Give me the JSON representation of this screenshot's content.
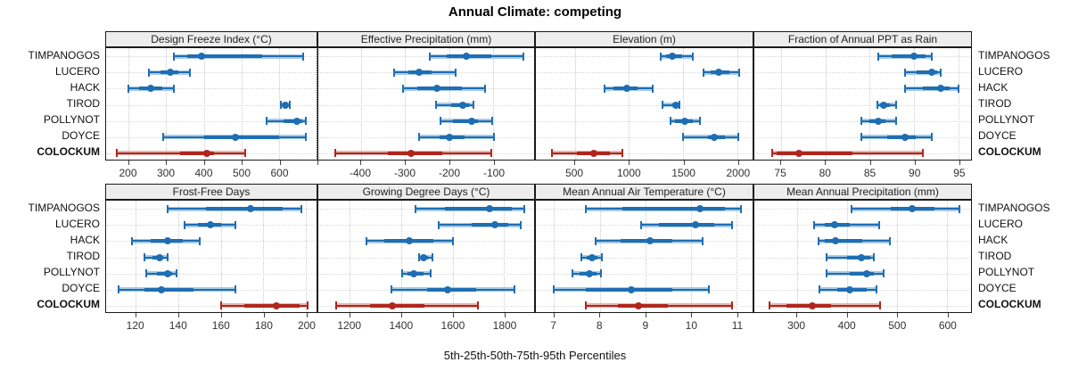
{
  "title": "Annual Climate: competing",
  "caption": "5th-25th-50th-75th-95th Percentiles",
  "sites": [
    "TIMPANOGOS",
    "LUCERO",
    "HACK",
    "TIROD",
    "POLLYNOT",
    "DOYCE",
    "COLOCKUM"
  ],
  "highlight_site": "COLOCKUM",
  "colors": {
    "blue": "#1f6eb3",
    "blue_light": "#a9cbe4",
    "red": "#b0261c",
    "red_light": "#e6b7b1",
    "grid": "#c9c9c9",
    "strip_bg": "#ededed",
    "border": "#1a1a1a",
    "text": "#333333"
  },
  "chart_data": [
    {
      "type": "dotplot-percentiles",
      "title": "Design Freeze Index (°C)",
      "row": 0,
      "col": 0,
      "xlim": [
        140,
        700
      ],
      "ticks": [
        200,
        300,
        400,
        500,
        600
      ],
      "extra_ticks": [
        700
      ],
      "percentile_levels": [
        5,
        25,
        50,
        75,
        95
      ],
      "series": [
        {
          "name": "TIMPANOGOS",
          "percentiles": [
            320,
            355,
            395,
            555,
            665
          ]
        },
        {
          "name": "LUCERO",
          "percentiles": [
            255,
            285,
            310,
            332,
            362
          ]
        },
        {
          "name": "HACK",
          "percentiles": [
            200,
            228,
            258,
            290,
            320
          ]
        },
        {
          "name": "TIROD",
          "percentiles": [
            604,
            611,
            617,
            623,
            629
          ]
        },
        {
          "name": "POLLYNOT",
          "percentiles": [
            568,
            612,
            648,
            661,
            672
          ]
        },
        {
          "name": "DOYCE",
          "percentiles": [
            293,
            400,
            485,
            600,
            672
          ]
        },
        {
          "name": "COLOCKUM",
          "percentiles": [
            168,
            337,
            408,
            426,
            510
          ]
        }
      ]
    },
    {
      "type": "dotplot-percentiles",
      "title": "Effective Precipitation (mm)",
      "row": 0,
      "col": 1,
      "xlim": [
        -496,
        -8
      ],
      "ticks": [
        -400,
        -300,
        -200,
        -100
      ],
      "extra_ticks": [],
      "percentile_levels": [
        5,
        25,
        50,
        75,
        95
      ],
      "series": [
        {
          "name": "TIMPANOGOS",
          "percentiles": [
            -243,
            -205,
            -162,
            -105,
            -33
          ]
        },
        {
          "name": "LUCERO",
          "percentiles": [
            -324,
            -292,
            -269,
            -239,
            -185
          ]
        },
        {
          "name": "HACK",
          "percentiles": [
            -305,
            -272,
            -227,
            -172,
            -119
          ]
        },
        {
          "name": "TIROD",
          "percentiles": [
            -229,
            -195,
            -170,
            -155,
            -145
          ]
        },
        {
          "name": "POLLYNOT",
          "percentiles": [
            -219,
            -192,
            -149,
            -135,
            -103
          ]
        },
        {
          "name": "DOYCE",
          "percentiles": [
            -269,
            -222,
            -199,
            -165,
            -99
          ]
        },
        {
          "name": "COLOCKUM",
          "percentiles": [
            -457,
            -339,
            -287,
            -215,
            -105
          ]
        }
      ]
    },
    {
      "type": "dotplot-percentiles",
      "title": "Elevation (m)",
      "row": 0,
      "col": 2,
      "xlim": [
        140,
        2140
      ],
      "ticks": [
        500,
        1000,
        1500,
        2000
      ],
      "extra_ticks": [],
      "percentile_levels": [
        5,
        25,
        50,
        75,
        95
      ],
      "series": [
        {
          "name": "TIMPANOGOS",
          "percentiles": [
            1290,
            1345,
            1400,
            1490,
            1585
          ]
        },
        {
          "name": "LUCERO",
          "percentiles": [
            1685,
            1750,
            1825,
            1930,
            2020
          ]
        },
        {
          "name": "HACK",
          "percentiles": [
            770,
            860,
            980,
            1080,
            1215
          ]
        },
        {
          "name": "TIROD",
          "percentiles": [
            1310,
            1400,
            1435,
            1455,
            1465
          ]
        },
        {
          "name": "POLLYNOT",
          "percentiles": [
            1380,
            1420,
            1515,
            1590,
            1655
          ]
        },
        {
          "name": "DOYCE",
          "percentiles": [
            1500,
            1725,
            1785,
            1885,
            2005
          ]
        },
        {
          "name": "COLOCKUM",
          "percentiles": [
            290,
            520,
            675,
            820,
            940
          ]
        }
      ]
    },
    {
      "type": "dotplot-percentiles",
      "title": "Fraction of Annual PPT as Rain",
      "row": 0,
      "col": 3,
      "xlim": [
        72,
        96.4
      ],
      "ticks": [
        75,
        80,
        85,
        90,
        95
      ],
      "extra_ticks": [],
      "percentile_levels": [
        5,
        25,
        50,
        75,
        95
      ],
      "series": [
        {
          "name": "TIMPANOGOS",
          "percentiles": [
            86,
            87.5,
            90,
            91.3,
            92
          ]
        },
        {
          "name": "LUCERO",
          "percentiles": [
            89,
            90.3,
            92,
            92.6,
            93
          ]
        },
        {
          "name": "HACK",
          "percentiles": [
            89,
            91,
            93,
            94,
            95
          ]
        },
        {
          "name": "TIROD",
          "percentiles": [
            85.9,
            86.2,
            86.6,
            87.3,
            88
          ]
        },
        {
          "name": "POLLYNOT",
          "percentiles": [
            84,
            85,
            86,
            86.8,
            88
          ]
        },
        {
          "name": "DOYCE",
          "percentiles": [
            84,
            87,
            89,
            90.2,
            92
          ]
        },
        {
          "name": "COLOCKUM",
          "percentiles": [
            74,
            74.5,
            77,
            83,
            91
          ]
        }
      ]
    },
    {
      "type": "dotplot-percentiles",
      "title": "Frost-Free Days",
      "row": 1,
      "col": 0,
      "xlim": [
        106,
        205
      ],
      "ticks": [
        120,
        140,
        160,
        180,
        200
      ],
      "extra_ticks": [],
      "percentile_levels": [
        5,
        25,
        50,
        75,
        95
      ],
      "series": [
        {
          "name": "TIMPANOGOS",
          "percentiles": [
            135,
            153,
            174,
            189,
            198
          ]
        },
        {
          "name": "LUCERO",
          "percentiles": [
            143,
            149,
            155,
            160,
            167
          ]
        },
        {
          "name": "HACK",
          "percentiles": [
            118,
            127,
            135,
            142,
            150
          ]
        },
        {
          "name": "TIROD",
          "percentiles": [
            124,
            128,
            131,
            133,
            135
          ]
        },
        {
          "name": "POLLYNOT",
          "percentiles": [
            125,
            130,
            135,
            137,
            139
          ]
        },
        {
          "name": "DOYCE",
          "percentiles": [
            112,
            124,
            132,
            147,
            167
          ]
        },
        {
          "name": "COLOCKUM",
          "percentiles": [
            160,
            171,
            186,
            197,
            201
          ]
        }
      ]
    },
    {
      "type": "dotplot-percentiles",
      "title": "Growing Degree Days (°C)",
      "row": 1,
      "col": 1,
      "xlim": [
        1077,
        1917
      ],
      "ticks": [
        1200,
        1400,
        1600,
        1800
      ],
      "extra_ticks": [],
      "percentile_levels": [
        5,
        25,
        50,
        75,
        95
      ],
      "series": [
        {
          "name": "TIMPANOGOS",
          "percentiles": [
            1455,
            1570,
            1745,
            1830,
            1880
          ]
        },
        {
          "name": "LUCERO",
          "percentiles": [
            1545,
            1675,
            1765,
            1815,
            1865
          ]
        },
        {
          "name": "HACK",
          "percentiles": [
            1265,
            1335,
            1430,
            1525,
            1600
          ]
        },
        {
          "name": "TIROD",
          "percentiles": [
            1470,
            1478,
            1487,
            1505,
            1520
          ]
        },
        {
          "name": "POLLYNOT",
          "percentiles": [
            1405,
            1425,
            1450,
            1485,
            1515
          ]
        },
        {
          "name": "DOYCE",
          "percentiles": [
            1360,
            1500,
            1580,
            1690,
            1840
          ]
        },
        {
          "name": "COLOCKUM",
          "percentiles": [
            1145,
            1280,
            1365,
            1490,
            1700
          ]
        }
      ]
    },
    {
      "type": "dotplot-percentiles",
      "title": "Mean Annual Air Temperature (°C)",
      "row": 1,
      "col": 2,
      "xlim": [
        6.6,
        11.35
      ],
      "ticks": [
        7,
        8,
        9,
        10,
        11
      ],
      "extra_ticks": [],
      "percentile_levels": [
        5,
        25,
        50,
        75,
        95
      ],
      "series": [
        {
          "name": "TIMPANOGOS",
          "percentiles": [
            7.7,
            8.5,
            10.2,
            10.75,
            11.1
          ]
        },
        {
          "name": "LUCERO",
          "percentiles": [
            8.9,
            9.3,
            10.1,
            10.5,
            10.9
          ]
        },
        {
          "name": "HACK",
          "percentiles": [
            7.9,
            8.45,
            9.1,
            9.6,
            10.25
          ]
        },
        {
          "name": "TIROD",
          "percentiles": [
            7.6,
            7.72,
            7.83,
            7.95,
            8.05
          ]
        },
        {
          "name": "POLLYNOT",
          "percentiles": [
            7.4,
            7.55,
            7.78,
            7.92,
            8.02
          ]
        },
        {
          "name": "DOYCE",
          "percentiles": [
            7.0,
            7.7,
            8.7,
            9.6,
            10.4
          ]
        },
        {
          "name": "COLOCKUM",
          "percentiles": [
            7.7,
            8.4,
            8.85,
            9.5,
            10.9
          ]
        }
      ]
    },
    {
      "type": "dotplot-percentiles",
      "title": "Mean Annual Precipitation (mm)",
      "row": 1,
      "col": 3,
      "xlim": [
        215,
        648
      ],
      "ticks": [
        300,
        400,
        500,
        600
      ],
      "extra_ticks": [],
      "percentile_levels": [
        5,
        25,
        50,
        75,
        95
      ],
      "series": [
        {
          "name": "TIMPANOGOS",
          "percentiles": [
            410,
            488,
            530,
            575,
            625
          ]
        },
        {
          "name": "LUCERO",
          "percentiles": [
            335,
            355,
            375,
            405,
            465
          ]
        },
        {
          "name": "HACK",
          "percentiles": [
            343,
            356,
            378,
            430,
            485
          ]
        },
        {
          "name": "TIROD",
          "percentiles": [
            360,
            400,
            428,
            447,
            453
          ]
        },
        {
          "name": "POLLYNOT",
          "percentiles": [
            360,
            405,
            440,
            453,
            473
          ]
        },
        {
          "name": "DOYCE",
          "percentiles": [
            345,
            380,
            405,
            440,
            460
          ]
        },
        {
          "name": "COLOCKUM",
          "percentiles": [
            245,
            280,
            330,
            368,
            466
          ]
        }
      ]
    }
  ]
}
